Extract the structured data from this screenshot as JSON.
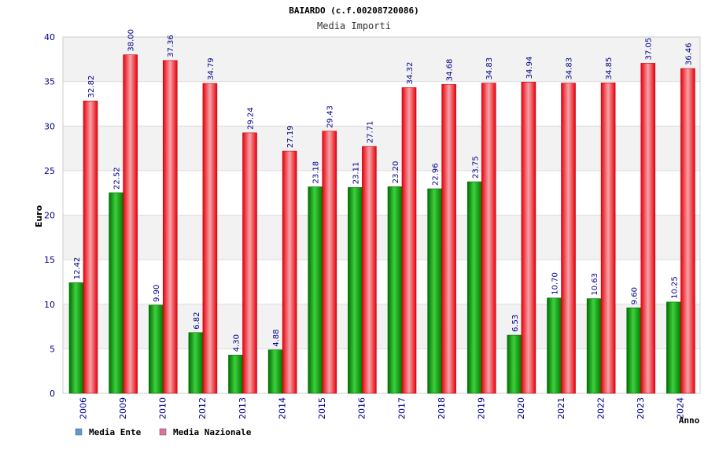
{
  "chart_data": {
    "type": "bar",
    "title": "BAIARDO (c.f.00208720086)",
    "subtitle": "Media Importi",
    "xlabel": "Anno",
    "ylabel": "Euro",
    "ylim": [
      0,
      40
    ],
    "yticks": [
      "0",
      "5",
      "10",
      "15",
      "20",
      "25",
      "30",
      "35",
      "40"
    ],
    "categories": [
      "2006",
      "2009",
      "2010",
      "2012",
      "2013",
      "2014",
      "2015",
      "2016",
      "2017",
      "2018",
      "2019",
      "2020",
      "2021",
      "2022",
      "2023",
      "2024"
    ],
    "series": [
      {
        "name": "Media Ente",
        "color": "#00b400",
        "legend_color": "#5b9bd5",
        "values": [
          12.42,
          22.52,
          9.9,
          6.82,
          4.3,
          4.88,
          23.18,
          23.11,
          23.2,
          22.96,
          23.75,
          6.53,
          10.7,
          10.63,
          9.6,
          10.25
        ],
        "labels": [
          "12.42",
          "22.52",
          "9.90",
          "6.82",
          "4.30",
          "4.88",
          "23.18",
          "23.11",
          "23.20",
          "22.96",
          "23.75",
          "6.53",
          "10.70",
          "10.63",
          "9.60",
          "10.25"
        ]
      },
      {
        "name": "Media Nazionale",
        "color": "#e8000c",
        "legend_color": "#e070a0",
        "values": [
          32.82,
          38.0,
          37.36,
          34.79,
          29.24,
          27.19,
          29.43,
          27.71,
          34.32,
          34.68,
          34.83,
          34.94,
          34.83,
          34.85,
          37.05,
          36.46
        ],
        "labels": [
          "32.82",
          "38.00",
          "37.36",
          "34.79",
          "29.24",
          "27.19",
          "29.43",
          "27.71",
          "34.32",
          "34.68",
          "34.83",
          "34.94",
          "34.83",
          "34.85",
          "37.05",
          "36.46"
        ]
      }
    ],
    "legend_position": "bottom-left"
  }
}
